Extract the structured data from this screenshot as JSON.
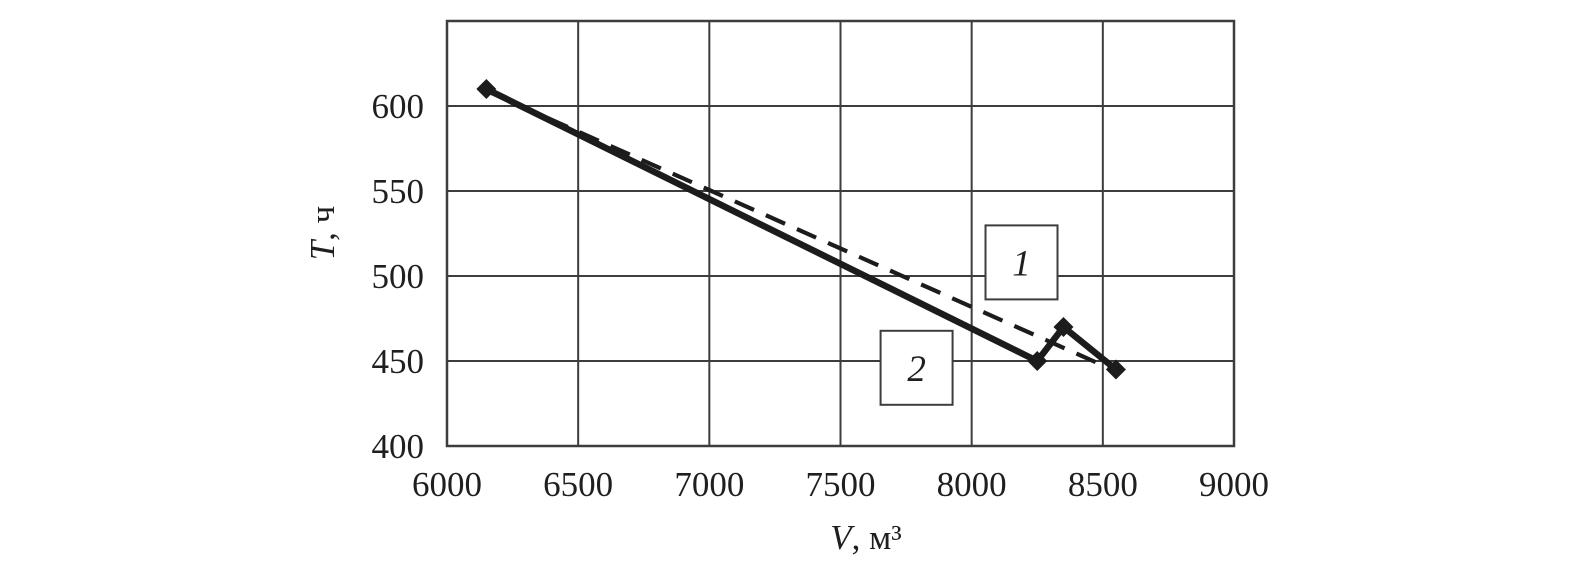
{
  "chart_data": {
    "type": "line",
    "title": "",
    "xlabel": {
      "var": "V",
      "rest": ", м³"
    },
    "ylabel": {
      "var": "T",
      "rest": ", ч"
    },
    "xlim": [
      6000,
      9000
    ],
    "ylim": [
      400,
      650
    ],
    "x_ticks": [
      6000,
      6500,
      7000,
      7500,
      8000,
      8500,
      9000
    ],
    "y_ticks": [
      400,
      450,
      500,
      550,
      600
    ],
    "grid": true,
    "legend_position": "none",
    "series": [
      {
        "name": "series-1-dashed-trend",
        "label": "1",
        "style": "dashed",
        "marker": "none",
        "points": [
          [
            6150,
            609
          ],
          [
            8550,
            444
          ]
        ]
      },
      {
        "name": "series-2-solid-measured",
        "label": "2",
        "style": "solid",
        "marker": "diamond",
        "points": [
          [
            6150,
            610
          ],
          [
            8250,
            450
          ],
          [
            8350,
            470
          ],
          [
            8550,
            445
          ]
        ]
      }
    ],
    "annotations": [
      {
        "text": "1",
        "x": 8190,
        "y": 508
      },
      {
        "text": "2",
        "x": 7790,
        "y": 446
      }
    ],
    "colors": {
      "line": "#1c1c1c",
      "grid": "#3d3d3d",
      "text": "#1f1f1f",
      "box_fill": "#ffffff",
      "box_border": "#3d3d3d"
    }
  }
}
